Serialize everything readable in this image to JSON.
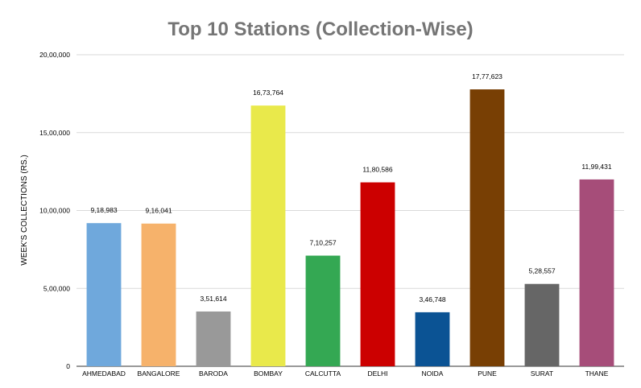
{
  "chart_data": {
    "type": "bar",
    "title": "Top 10 Stations (Collection-Wise)",
    "xlabel": "",
    "ylabel": "WEEK'S COLLECTIONS (RS.)",
    "ylim": [
      0,
      2000000
    ],
    "yticks": [
      0,
      500000,
      1000000,
      1500000,
      2000000
    ],
    "ytick_labels": [
      "0",
      "5,00,000",
      "10,00,000",
      "15,00,000",
      "20,00,000"
    ],
    "grid": true,
    "legend": "none",
    "categories": [
      "AHMEDABAD",
      "BANGALORE",
      "BARODA",
      "BOMBAY",
      "CALCUTTA",
      "DELHI",
      "NOIDA",
      "PUNE",
      "SURAT",
      "THANE"
    ],
    "values": [
      918983,
      916041,
      351614,
      1673764,
      710257,
      1180586,
      346748,
      1777623,
      528557,
      1199431
    ],
    "value_labels": [
      "9,18,983",
      "9,16,041",
      "3,51,614",
      "16,73,764",
      "7,10,257",
      "11,80,586",
      "3,46,748",
      "17,77,623",
      "5,28,557",
      "11,99,431"
    ],
    "colors": [
      "#6fa8dc",
      "#f6b26b",
      "#999999",
      "#e9e94b",
      "#34a853",
      "#cc0000",
      "#0b5394",
      "#783f04",
      "#666666",
      "#a64d79"
    ]
  }
}
